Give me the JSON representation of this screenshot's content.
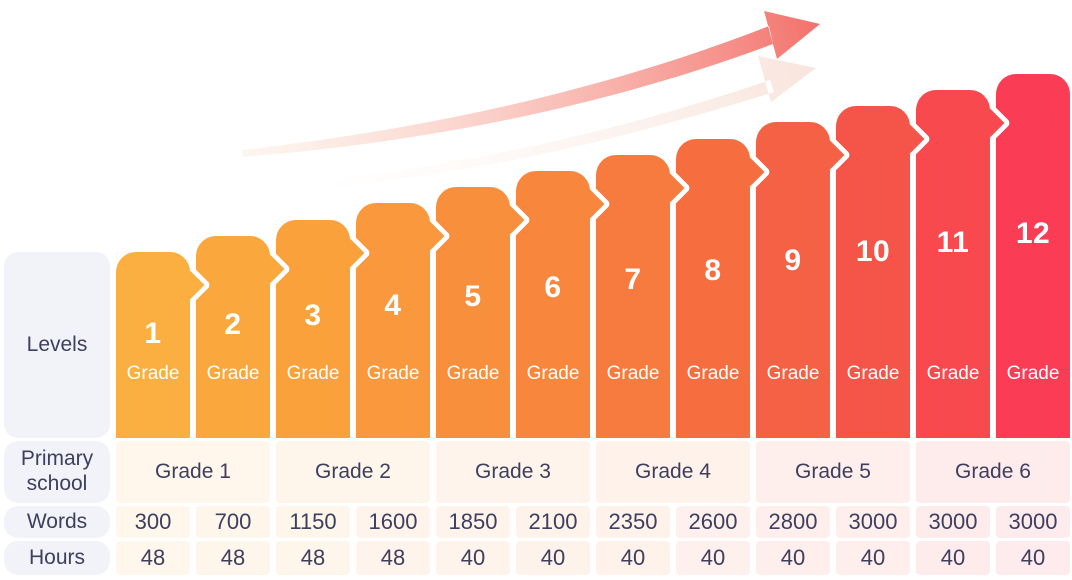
{
  "style": {
    "bar_colors": [
      "#FBAF41",
      "#FAA83E",
      "#FAA13C",
      "#F9983D",
      "#F88F3D",
      "#F8863D",
      "#F77B3E",
      "#F66E40",
      "#F56144",
      "#F55549",
      "#F7494E",
      "#FA3C55"
    ],
    "label_box_bg": "#F2F3F9",
    "text_dark": "#3E3E5E",
    "bar_text": "#FFFFFF",
    "cell_tint_alpha": 0.1,
    "arrow_gradient_from": "#FBE7D8",
    "arrow_gradient_to": "#F3716B",
    "ghost_arrow_from": "#FDF4EE",
    "ghost_arrow_to": "#F8E3DB"
  },
  "rows": {
    "levels_label": "Levels",
    "primary_label": "Primary school",
    "words_label": "Words",
    "hours_label": "Hours"
  },
  "chart_data": {
    "type": "bar",
    "categories": [
      "1",
      "2",
      "3",
      "4",
      "5",
      "6",
      "7",
      "8",
      "9",
      "10",
      "11",
      "12"
    ],
    "bar_unit": "Grade",
    "series": [
      {
        "name": "Words",
        "values": [
          300,
          700,
          1150,
          1600,
          1850,
          2100,
          2350,
          2600,
          2800,
          3000,
          3000,
          3000
        ]
      },
      {
        "name": "Hours",
        "values": [
          48,
          48,
          48,
          48,
          40,
          40,
          40,
          40,
          40,
          40,
          40,
          40
        ]
      }
    ],
    "primary_school_groups": [
      {
        "label": "Grade 1",
        "levels": [
          "1",
          "2"
        ]
      },
      {
        "label": "Grade 2",
        "levels": [
          "3",
          "4"
        ]
      },
      {
        "label": "Grade 3",
        "levels": [
          "5",
          "6"
        ]
      },
      {
        "label": "Grade 4",
        "levels": [
          "7",
          "8"
        ]
      },
      {
        "label": "Grade 5",
        "levels": [
          "9",
          "10"
        ]
      },
      {
        "label": "Grade 6",
        "levels": [
          "11",
          "12"
        ]
      }
    ],
    "legend": false,
    "grid": false,
    "trend_annotation": "ascending-arrow"
  }
}
